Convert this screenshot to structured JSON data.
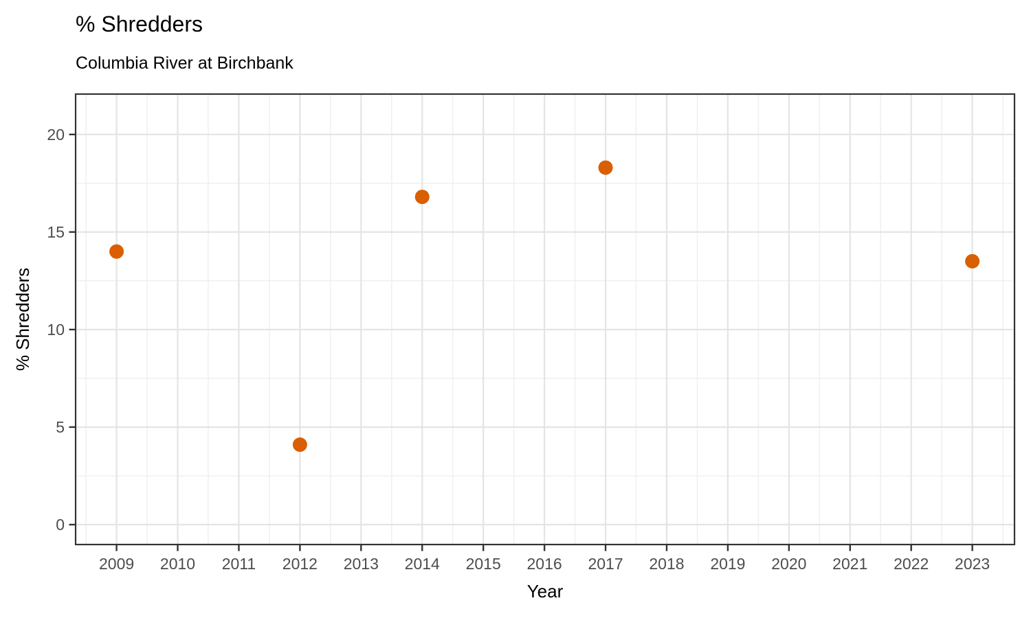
{
  "title": "% Shredders",
  "subtitle": "Columbia River at Birchbank",
  "chart_data": {
    "type": "scatter",
    "title": "% Shredders",
    "subtitle": "Columbia River at Birchbank",
    "xlabel": "Year",
    "ylabel": "% Shredders",
    "x": [
      2009,
      2012,
      2014,
      2017,
      2023
    ],
    "y": [
      14.0,
      4.1,
      16.8,
      18.3,
      13.5
    ],
    "points": [
      {
        "year": 2009,
        "pct_shredders": 14.0
      },
      {
        "year": 2012,
        "pct_shredders": 4.1
      },
      {
        "year": 2014,
        "pct_shredders": 16.8
      },
      {
        "year": 2017,
        "pct_shredders": 18.3
      },
      {
        "year": 2023,
        "pct_shredders": 13.5
      }
    ],
    "xlim": [
      2008.33,
      2023.69
    ],
    "ylim": [
      -1.02,
      22.07
    ],
    "x_major_ticks": [
      2009,
      2010,
      2011,
      2012,
      2013,
      2014,
      2015,
      2016,
      2017,
      2018,
      2019,
      2020,
      2021,
      2022,
      2023
    ],
    "x_tick_labels": [
      "2009",
      "2010",
      "2011",
      "2012",
      "2013",
      "2014",
      "2015",
      "2016",
      "2017",
      "2018",
      "2019",
      "2020",
      "2021",
      "2022",
      "2023"
    ],
    "x_minor_ticks": [
      2008.5,
      2009.5,
      2010.5,
      2011.5,
      2012.5,
      2013.5,
      2014.5,
      2015.5,
      2016.5,
      2017.5,
      2018.5,
      2019.5,
      2020.5,
      2021.5,
      2022.5,
      2023.5
    ],
    "y_major_ticks": [
      0,
      5,
      10,
      15,
      20
    ],
    "y_tick_labels": [
      "0",
      "5",
      "10",
      "15",
      "20"
    ],
    "y_minor_ticks": [
      2.5,
      7.5,
      12.5,
      17.5
    ],
    "grid": "major and minor, on white panel",
    "legend": "none",
    "point_radius_px": 10.5,
    "colors": {
      "point": "#D95F02",
      "grid_major": "#E4E4E4",
      "grid_minor": "#F0F0F0",
      "panel_border": "#333333",
      "tick": "#333333",
      "tick_label": "#4D4D4D",
      "axis_title": "#000000",
      "title": "#000000",
      "background": "#FFFFFF"
    }
  }
}
